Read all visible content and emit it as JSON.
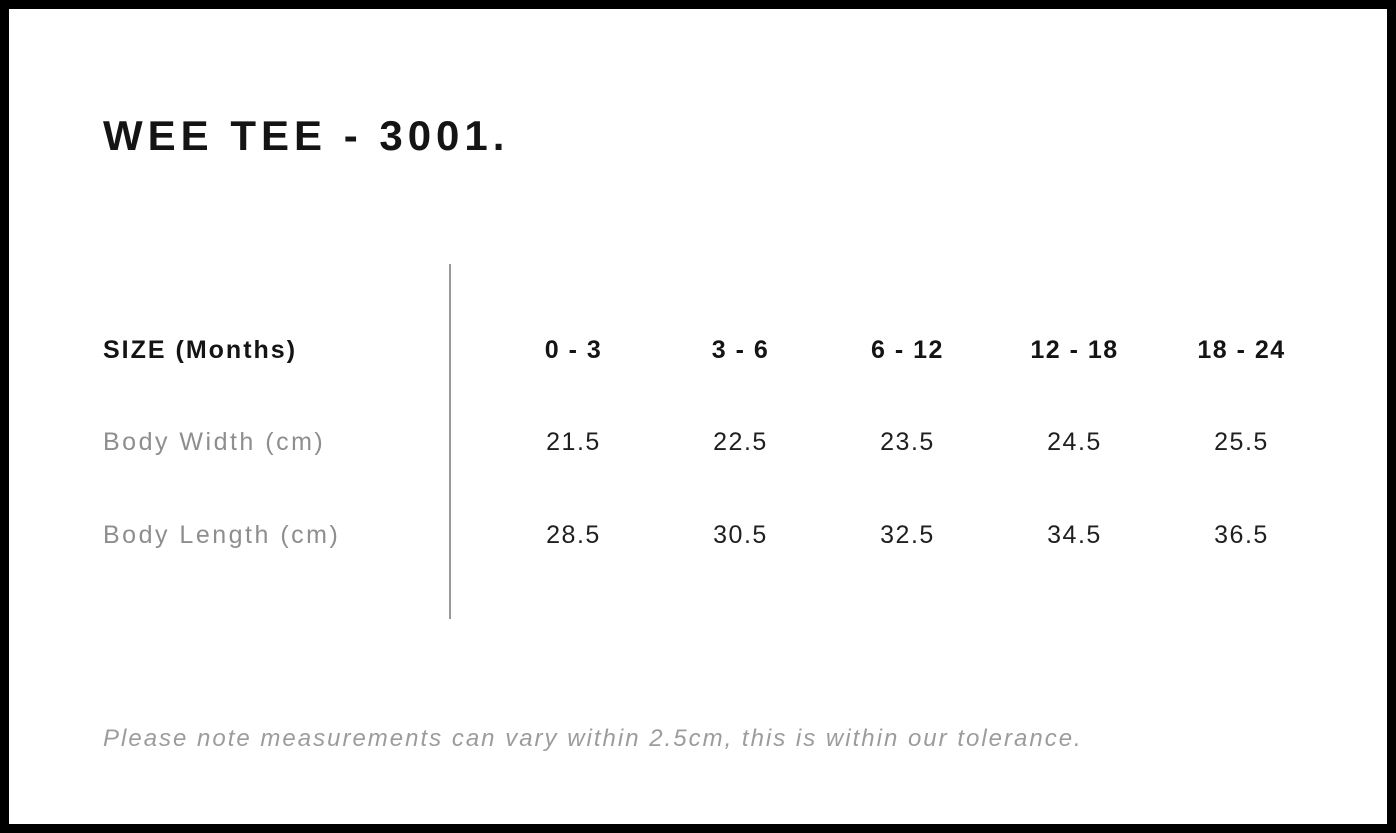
{
  "page": {
    "title": "WEE TEE - 3001.",
    "note": "Please note measurements can vary within 2.5cm, this is within our tolerance."
  },
  "size_chart": {
    "header_label": "SIZE (Months)",
    "columns": [
      "0 - 3",
      "3 - 6",
      "6 - 12",
      "12 - 18",
      "18 - 24"
    ],
    "rows": [
      {
        "label": "Body Width (cm)",
        "values": [
          "21.5",
          "22.5",
          "23.5",
          "24.5",
          "25.5"
        ]
      },
      {
        "label": "Body Length (cm)",
        "values": [
          "28.5",
          "30.5",
          "32.5",
          "34.5",
          "36.5"
        ]
      }
    ]
  },
  "colors": {
    "frame_border": "#000000",
    "heading_text": "#141414",
    "row_label_text": "#8e8e8e",
    "note_text": "#9c9c9c",
    "divider": "#9a9a9a"
  }
}
